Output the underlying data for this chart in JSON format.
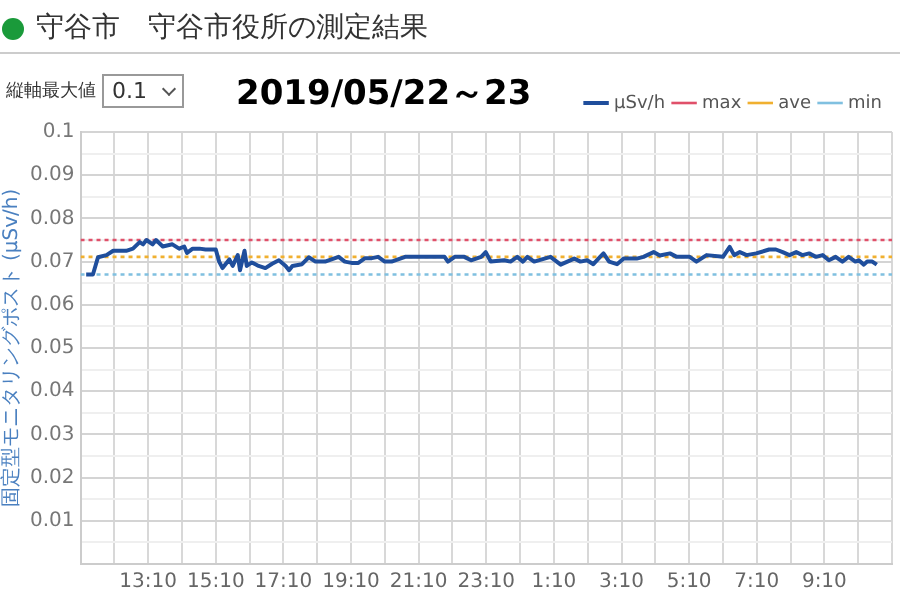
{
  "chart_data": {
    "type": "line",
    "title": "守谷市　守谷市役所の測定結果",
    "subtitle": "2019/05/22～23",
    "ylabel": "固定型モニタリングポスト (μSv/h)",
    "annotations": [
      "縦軸最大値",
      "0.1"
    ],
    "xlim": [
      "2019-05-22T11:10",
      "2019-05-23T11:10"
    ],
    "xticks": [
      {
        "value": "2019-05-22T11:10",
        "label": null
      },
      {
        "value": "2019-05-22T12:10",
        "label": null
      },
      {
        "value": "2019-05-22T13:10",
        "label": "13:10"
      },
      {
        "value": "2019-05-22T14:10",
        "label": null
      },
      {
        "value": "2019-05-22T15:10",
        "label": "15:10"
      },
      {
        "value": "2019-05-22T16:10",
        "label": null
      },
      {
        "value": "2019-05-22T17:10",
        "label": "17:10"
      },
      {
        "value": "2019-05-22T18:10",
        "label": null
      },
      {
        "value": "2019-05-22T19:10",
        "label": "19:10"
      },
      {
        "value": "2019-05-22T20:10",
        "label": null
      },
      {
        "value": "2019-05-22T21:10",
        "label": "21:10"
      },
      {
        "value": "2019-05-22T22:10",
        "label": null
      },
      {
        "value": "2019-05-22T23:10",
        "label": "23:10"
      },
      {
        "value": "2019-05-23T00:10",
        "label": null
      },
      {
        "value": "2019-05-23T01:10",
        "label": "1:10"
      },
      {
        "value": "2019-05-23T02:10",
        "label": null
      },
      {
        "value": "2019-05-23T03:10",
        "label": "3:10"
      },
      {
        "value": "2019-05-23T04:10",
        "label": null
      },
      {
        "value": "2019-05-23T05:10",
        "label": "5:10"
      },
      {
        "value": "2019-05-23T06:10",
        "label": null
      },
      {
        "value": "2019-05-23T07:10",
        "label": "7:10"
      },
      {
        "value": "2019-05-23T08:10",
        "label": null
      },
      {
        "value": "2019-05-23T09:10",
        "label": "9:10"
      },
      {
        "value": "2019-05-23T10:10",
        "label": null
      },
      {
        "value": "2019-05-23T11:10",
        "label": null
      }
    ],
    "ylim": [
      0,
      0.1
    ],
    "yticks": [
      {
        "value": 0,
        "label": null
      },
      {
        "value": 0.005,
        "label": null
      },
      0.01,
      {
        "value": 0.015,
        "label": null
      },
      0.02,
      {
        "value": 0.025,
        "label": null
      },
      0.03,
      {
        "value": 0.035,
        "label": null
      },
      0.04,
      {
        "value": 0.045,
        "label": null
      },
      0.05,
      {
        "value": 0.055,
        "label": null
      },
      0.06,
      {
        "value": 0.065,
        "label": null
      },
      0.07,
      {
        "value": 0.075,
        "label": null
      },
      0.08,
      {
        "value": 0.085,
        "label": null
      },
      0.09,
      {
        "value": 0.095,
        "label": null
      },
      0.1
    ],
    "grid": true,
    "legend": "top right",
    "marker": "none",
    "series": [
      {
        "name": "μSv/h",
        "color": "#1f4e9c",
        "line_style": "solid",
        "x": [
          "2019-05-22T11:20",
          "2019-05-22T11:32",
          "2019-05-22T11:41",
          "2019-05-22T11:56",
          "2019-05-22T12:08",
          "2019-05-22T12:31",
          "2019-05-22T12:43",
          "2019-05-22T12:55",
          "2019-05-22T13:01",
          "2019-05-22T13:07",
          "2019-05-22T13:18",
          "2019-05-22T13:24",
          "2019-05-22T13:36",
          "2019-05-22T13:53",
          "2019-05-22T14:05",
          "2019-05-22T14:14",
          "2019-05-22T14:19",
          "2019-05-22T14:29",
          "2019-05-22T14:41",
          "2019-05-22T14:52",
          "2019-05-22T15:10",
          "2019-05-22T15:16",
          "2019-05-22T15:22",
          "2019-05-22T15:34",
          "2019-05-22T15:40",
          "2019-05-22T15:49",
          "2019-05-22T15:53",
          "2019-05-22T16:01",
          "2019-05-22T16:05",
          "2019-05-22T16:14",
          "2019-05-22T16:26",
          "2019-05-22T16:38",
          "2019-05-22T16:50",
          "2019-05-22T17:02",
          "2019-05-22T17:14",
          "2019-05-22T17:20",
          "2019-05-22T17:26",
          "2019-05-22T17:43",
          "2019-05-22T17:55",
          "2019-05-22T18:07",
          "2019-05-22T18:24",
          "2019-05-22T18:48",
          "2019-05-22T18:59",
          "2019-05-22T19:11",
          "2019-05-22T19:23",
          "2019-05-22T19:35",
          "2019-05-22T19:47",
          "2019-05-22T19:58",
          "2019-05-22T20:10",
          "2019-05-22T20:22",
          "2019-05-22T20:46",
          "2019-05-22T21:09",
          "2019-05-22T21:32",
          "2019-05-22T21:56",
          "2019-05-22T22:02",
          "2019-05-22T22:14",
          "2019-05-22T22:31",
          "2019-05-22T22:43",
          "2019-05-22T23:01",
          "2019-05-22T23:09",
          "2019-05-22T23:18",
          "2019-05-22T23:42",
          "2019-05-22T23:53",
          "2019-05-23T00:05",
          "2019-05-23T00:15",
          "2019-05-23T00:23",
          "2019-05-23T00:35",
          "2019-05-23T01:04",
          "2019-05-23T01:22",
          "2019-05-23T01:34",
          "2019-05-23T01:46",
          "2019-05-23T01:57",
          "2019-05-23T02:09",
          "2019-05-23T02:20",
          "2019-05-23T02:32",
          "2019-05-23T02:38",
          "2019-05-23T02:48",
          "2019-05-23T03:02",
          "2019-05-23T03:14",
          "2019-05-23T03:37",
          "2019-05-23T03:49",
          "2019-05-23T04:07",
          "2019-05-23T04:18",
          "2019-05-23T04:36",
          "2019-05-23T04:48",
          "2019-05-23T05:11",
          "2019-05-23T05:23",
          "2019-05-23T05:41",
          "2019-05-23T06:10",
          "2019-05-23T06:22",
          "2019-05-23T06:30",
          "2019-05-23T06:40",
          "2019-05-23T06:52",
          "2019-05-23T07:09",
          "2019-05-23T07:32",
          "2019-05-23T07:44",
          "2019-05-23T07:56",
          "2019-05-23T08:08",
          "2019-05-23T08:20",
          "2019-05-23T08:31",
          "2019-05-23T08:43",
          "2019-05-23T08:55",
          "2019-05-23T09:07",
          "2019-05-23T09:18",
          "2019-05-23T09:30",
          "2019-05-23T09:42",
          "2019-05-23T09:53",
          "2019-05-23T10:05",
          "2019-05-23T10:11",
          "2019-05-23T10:20",
          "2019-05-23T10:26",
          "2019-05-23T10:35",
          "2019-05-23T10:43"
        ],
        "values": [
          0.067,
          0.067,
          0.071,
          0.0715,
          0.0725,
          0.0725,
          0.073,
          0.0745,
          0.074,
          0.075,
          0.074,
          0.075,
          0.0735,
          0.074,
          0.073,
          0.0735,
          0.072,
          0.073,
          0.073,
          0.0728,
          0.0728,
          0.07,
          0.0685,
          0.0705,
          0.069,
          0.0715,
          0.068,
          0.0725,
          0.069,
          0.0698,
          0.069,
          0.0685,
          0.0695,
          0.0703,
          0.069,
          0.068,
          0.069,
          0.0694,
          0.071,
          0.07,
          0.07,
          0.0711,
          0.07,
          0.0697,
          0.0697,
          0.0708,
          0.0708,
          0.0711,
          0.07,
          0.07,
          0.0711,
          0.0711,
          0.0711,
          0.0711,
          0.07,
          0.0711,
          0.0711,
          0.0703,
          0.0711,
          0.0722,
          0.07,
          0.0703,
          0.07,
          0.0711,
          0.07,
          0.0711,
          0.07,
          0.0711,
          0.0693,
          0.07,
          0.0707,
          0.07,
          0.0703,
          0.0694,
          0.0711,
          0.0719,
          0.07,
          0.0694,
          0.0707,
          0.0707,
          0.0711,
          0.0722,
          0.0714,
          0.0719,
          0.0711,
          0.0711,
          0.07,
          0.0715,
          0.0711,
          0.0734,
          0.0715,
          0.0722,
          0.0715,
          0.0719,
          0.0728,
          0.0728,
          0.0722,
          0.0715,
          0.0722,
          0.0715,
          0.0719,
          0.0711,
          0.0715,
          0.0703,
          0.0711,
          0.07,
          0.0711,
          0.07,
          0.0703,
          0.0693,
          0.07,
          0.07,
          0.0693
        ]
      },
      {
        "name": "max",
        "color": "#e0506a",
        "line_style": "dotted",
        "x": [
          "2019-05-22T11:10",
          "2019-05-23T11:10"
        ],
        "values": [
          0.075,
          0.075
        ]
      },
      {
        "name": "ave",
        "color": "#f0b030",
        "line_style": "dotted",
        "x": [
          "2019-05-22T11:10",
          "2019-05-23T11:10"
        ],
        "values": [
          0.0711,
          0.0711
        ]
      },
      {
        "name": "min",
        "color": "#80c0e0",
        "line_style": "dotted",
        "x": [
          "2019-05-22T11:10",
          "2019-05-23T11:10"
        ],
        "values": [
          0.067,
          0.067
        ]
      }
    ]
  }
}
